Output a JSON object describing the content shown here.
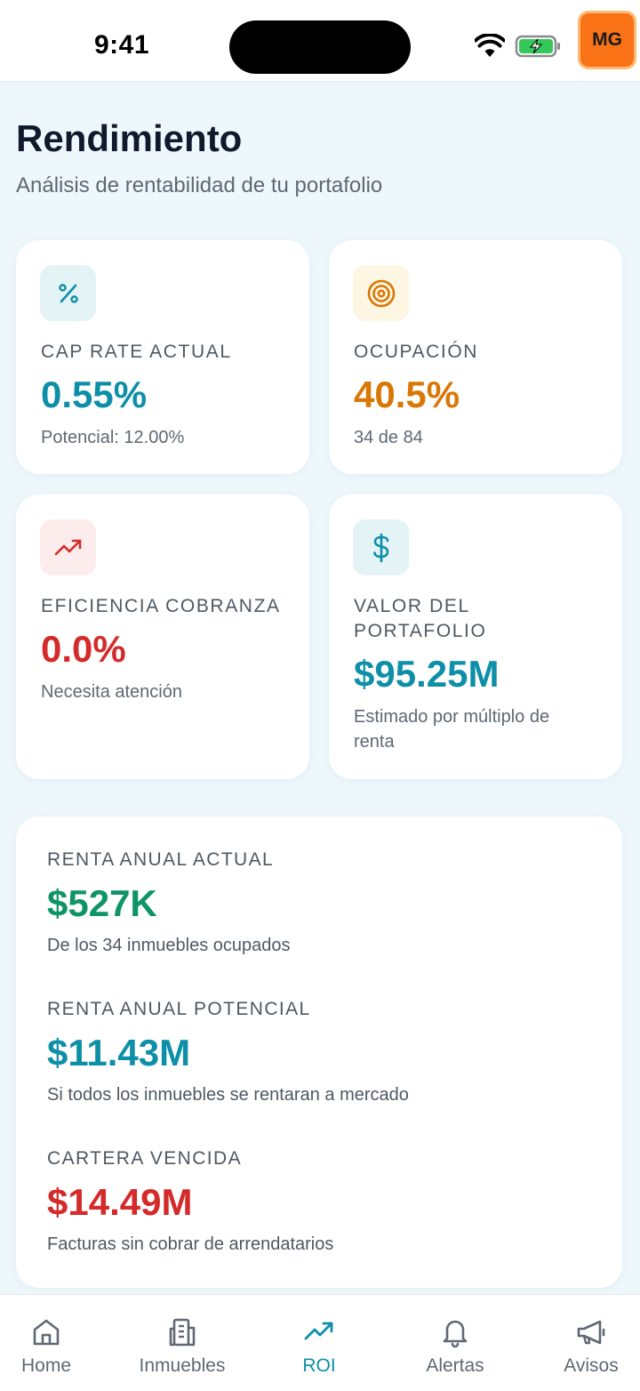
{
  "status_bar": {
    "time": "9:41",
    "avatar_initials": "MG"
  },
  "header": {
    "title": "Rendimiento",
    "subtitle": "Análisis de rentabilidad de tu portafolio"
  },
  "metrics": {
    "cap_rate": {
      "icon": "percent-icon",
      "label": "CAP RATE ACTUAL",
      "value": "0.55%",
      "sub": "Potencial: 12.00%",
      "color": "#0e8fa8"
    },
    "occupancy": {
      "icon": "target-icon",
      "label": "OCUPACIÓN",
      "value": "40.5%",
      "sub": "34 de 84",
      "color": "#d97706"
    },
    "collection": {
      "icon": "trending-up-icon",
      "label": "EFICIENCIA COBRANZA",
      "value": "0.0%",
      "sub": "Necesita atención",
      "color": "#d42a2a"
    },
    "portfolio_value": {
      "icon": "dollar-icon",
      "label_line1": "VALOR DEL",
      "label_line2": "PORTAFOLIO",
      "value": "$95.25M",
      "sub_line1": "Estimado por múltiplo de",
      "sub_line2": "renta",
      "color": "#0e8fa8"
    }
  },
  "income": {
    "current": {
      "label": "RENTA ANUAL ACTUAL",
      "value": "$527K",
      "sub": "De los 34 inmuebles ocupados",
      "color": "#0e9466"
    },
    "potential": {
      "label": "RENTA ANUAL POTENCIAL",
      "value": "$11.43M",
      "sub": "Si todos los inmuebles se rentaran a mercado",
      "color": "#0e8fa8"
    },
    "overdue": {
      "label": "CARTERA VENCIDA",
      "value": "$14.49M",
      "sub": "Facturas sin cobrar de arrendatarios",
      "color": "#d42a2a"
    }
  },
  "nav": {
    "items": [
      {
        "label": "Home",
        "icon": "home-icon"
      },
      {
        "label": "Inmuebles",
        "icon": "building-icon"
      },
      {
        "label": "ROI",
        "icon": "trending-up-icon",
        "active": true
      },
      {
        "label": "Alertas",
        "icon": "bell-icon"
      },
      {
        "label": "Avisos",
        "icon": "megaphone-icon"
      }
    ],
    "active_color": "#0e8fa8"
  }
}
